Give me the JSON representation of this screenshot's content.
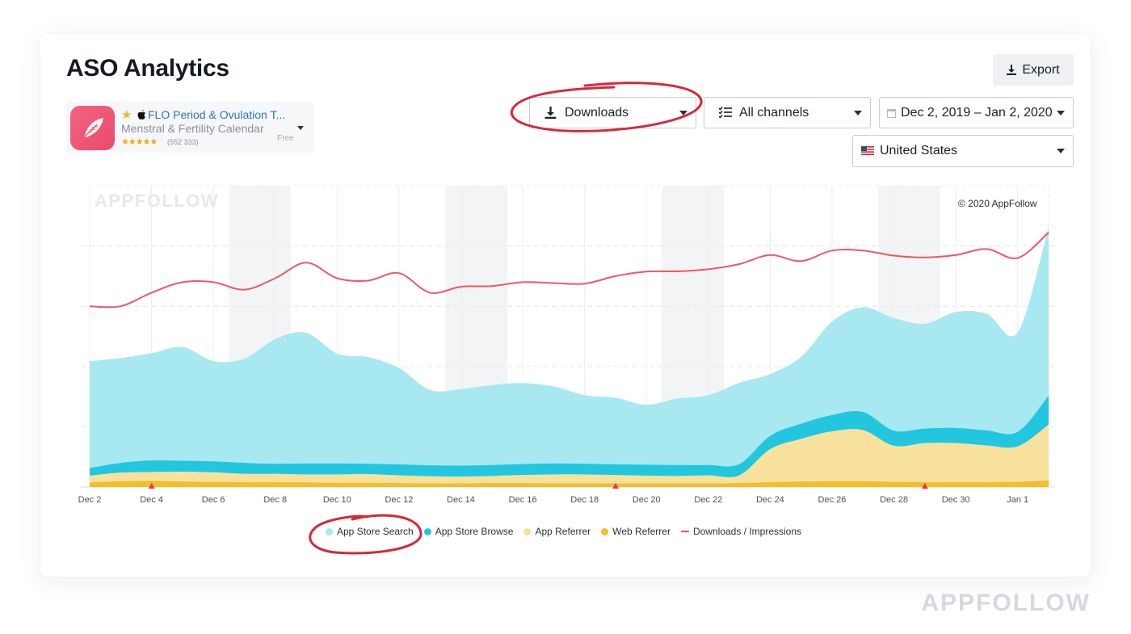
{
  "page": {
    "title": "ASO Analytics",
    "export_label": "Export",
    "brand_watermark": "APPFOLLOW"
  },
  "app": {
    "name": "FLO Period & Ovulation T...",
    "subtitle": "Menstral & Fertility Calendar",
    "rating_stars": "★★★★★",
    "rating_count": "(552 333)",
    "price": "Free",
    "platform_icon": "apple-icon",
    "favorite_icon": "star-icon"
  },
  "filters": {
    "metric": "Downloads",
    "channels": "All channels",
    "date_range": "Dec 2, 2019 – Jan 2, 2020",
    "country": "United States"
  },
  "chart": {
    "watermark": "APPFOLLOW",
    "copyright": "© 2020 AppFollow"
  },
  "colors": {
    "app_store_search": "#a8e8f1",
    "app_store_browse": "#22c6df",
    "app_referrer": "#f8e19c",
    "web_referrer": "#f2be2a",
    "downloads_impressions": "#f0566a",
    "annotation": "#d42a3a"
  },
  "chart_data": {
    "type": "area",
    "x": [
      "Dec 2",
      "Dec 3",
      "Dec 4",
      "Dec 5",
      "Dec 6",
      "Dec 7",
      "Dec 8",
      "Dec 9",
      "Dec 10",
      "Dec 11",
      "Dec 12",
      "Dec 13",
      "Dec 14",
      "Dec 15",
      "Dec 16",
      "Dec 17",
      "Dec 18",
      "Dec 19",
      "Dec 20",
      "Dec 21",
      "Dec 22",
      "Dec 23",
      "Dec 24",
      "Dec 25",
      "Dec 26",
      "Dec 27",
      "Dec 28",
      "Dec 29",
      "Dec 30",
      "Dec 31",
      "Jan 1",
      "Jan 2"
    ],
    "tick_labels": [
      "Dec 2",
      "Dec 4",
      "Dec 6",
      "Dec 8",
      "Dec 10",
      "Dec 12",
      "Dec 14",
      "Dec 16",
      "Dec 18",
      "Dec 20",
      "Dec 22",
      "Dec 24",
      "Dec 26",
      "Dec 28",
      "Dec 30",
      "Jan 1"
    ],
    "stacked": true,
    "series": [
      {
        "name": "Web Referrer",
        "values": [
          1.5,
          1.9,
          2.0,
          1.8,
          1.7,
          1.6,
          1.6,
          1.5,
          1.4,
          1.4,
          1.3,
          1.2,
          1.2,
          1.3,
          1.3,
          1.2,
          1.2,
          1.2,
          1.2,
          1.2,
          1.2,
          1.3,
          1.6,
          1.8,
          1.9,
          1.9,
          1.7,
          1.6,
          1.6,
          1.6,
          1.7,
          2.2
        ]
      },
      {
        "name": "App Referrer",
        "values": [
          2.3,
          2.9,
          3.0,
          3.3,
          3.2,
          2.8,
          2.8,
          2.7,
          2.8,
          2.9,
          2.6,
          2.4,
          2.3,
          2.4,
          2.7,
          3.0,
          3.0,
          2.8,
          2.6,
          2.5,
          2.7,
          2.6,
          11.0,
          14.2,
          16.6,
          17.0,
          12.0,
          13.0,
          13.0,
          12.2,
          11.8,
          18.5
        ]
      },
      {
        "name": "App Store Browse",
        "values": [
          2.5,
          3.2,
          3.8,
          3.6,
          3.6,
          3.6,
          3.3,
          3.6,
          3.6,
          3.4,
          3.6,
          3.6,
          3.6,
          3.6,
          3.6,
          3.6,
          3.5,
          3.5,
          3.6,
          3.6,
          3.4,
          3.7,
          4.4,
          5.0,
          5.4,
          6.0,
          5.0,
          4.8,
          5.0,
          5.0,
          4.8,
          9.6
        ]
      },
      {
        "name": "App Store Search",
        "values": [
          35.5,
          34.8,
          35.6,
          37.8,
          33.3,
          34.6,
          41.4,
          43.4,
          36.5,
          35.4,
          32.0,
          25.0,
          25.4,
          26.5,
          26.9,
          25.6,
          22.8,
          22.1,
          19.9,
          22.1,
          23.2,
          27.0,
          20.5,
          22.2,
          31.0,
          34.8,
          37.4,
          34.8,
          38.5,
          38.7,
          33.0,
          56.0
        ]
      },
      {
        "name": "Downloads / Impressions",
        "type": "line",
        "values": [
          60.0,
          60.0,
          64.5,
          68.0,
          68.0,
          65.5,
          69.3,
          74.5,
          69.3,
          68.5,
          71.0,
          64.5,
          66.5,
          66.7,
          68.0,
          67.7,
          67.5,
          70.0,
          71.5,
          71.6,
          72.3,
          74.0,
          77.0,
          75.0,
          78.5,
          78.5,
          76.8,
          76.2,
          77.0,
          79.0,
          76.0,
          84.5
        ]
      }
    ],
    "ylim": [
      0,
      100
    ],
    "grid": true,
    "weekend_bands": [
      "Dec 7-8",
      "Dec 14-15",
      "Dec 21-22",
      "Dec 28-29"
    ],
    "annotation_markers": [
      "Dec 4",
      "Dec 19",
      "Dec 29"
    ],
    "legend": {
      "position": "bottom",
      "items": [
        "App Store Search",
        "App Store Browse",
        "App Referrer",
        "Web Referrer",
        "Downloads / Impressions"
      ]
    }
  }
}
